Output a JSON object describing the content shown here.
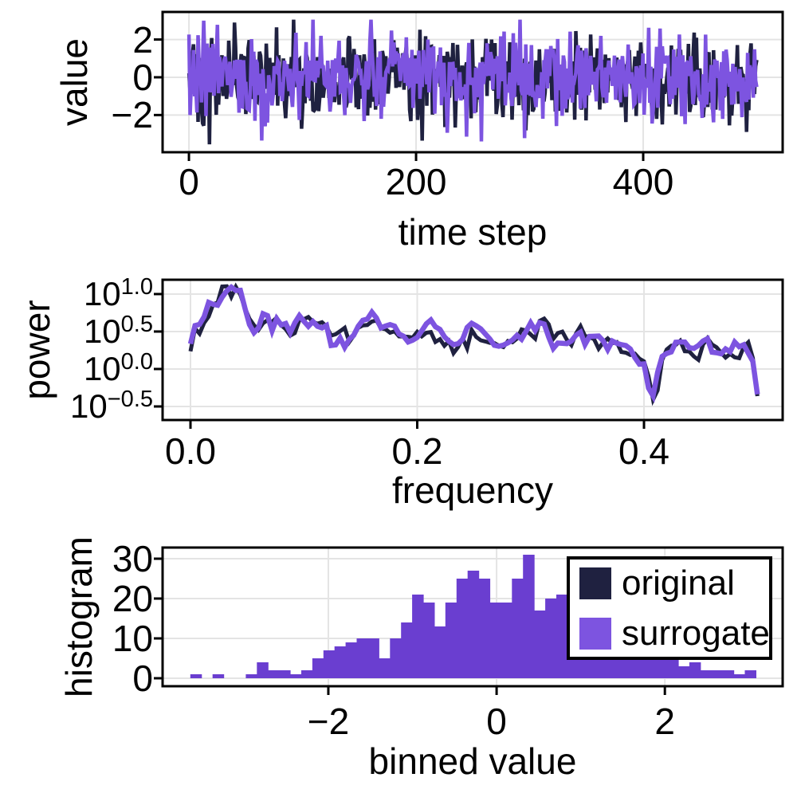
{
  "figure": {
    "background": "#ffffff",
    "text_color": "#000000",
    "grid_color": "#e4e4e4",
    "spine_color": "#000000"
  },
  "legend": {
    "entries": [
      {
        "label": "original",
        "color": "#1f2140"
      },
      {
        "label": "surrogate",
        "color": "#7d54e0"
      }
    ]
  },
  "chart_data": [
    {
      "type": "line",
      "id": "timeseries",
      "xlabel": "time step",
      "ylabel": "value",
      "xlim": [
        -23.2,
        522.8
      ],
      "ylim": [
        -3.97,
        3.46
      ],
      "xticks": {
        "values": [
          0,
          200,
          400
        ],
        "labels": [
          "0",
          "200",
          "400"
        ]
      },
      "yticks": {
        "values": [
          2,
          0,
          -2
        ],
        "labels": [
          "2",
          "0",
          "−2"
        ]
      },
      "x_range": [
        0,
        500
      ],
      "n_points": 500,
      "noise_std": 1.15,
      "series": [
        {
          "name": "original",
          "color": "#1f2140",
          "seed": 101,
          "linewidth": 4.5,
          "clip": [
            -3.55,
            3.05
          ],
          "spikes": [
            [
              18,
              -3.55
            ],
            [
              40,
              2.9
            ]
          ]
        },
        {
          "name": "surrogate",
          "color": "#7d54e0",
          "seed": 202,
          "linewidth": 4.5,
          "clip": [
            -3.4,
            3.05
          ],
          "spikes": [
            [
              13,
              3.0
            ],
            [
              64,
              -3.35
            ]
          ]
        }
      ]
    },
    {
      "type": "line",
      "id": "power-spectrum",
      "xlabel": "frequency",
      "ylabel": "power",
      "yscale": "log10",
      "xlim": [
        -0.0246,
        0.5223
      ],
      "ylim_log10": [
        -0.681,
        1.191
      ],
      "xticks": {
        "values": [
          0,
          0.2,
          0.4
        ],
        "labels": [
          "0.0",
          "0.2",
          "0.4"
        ]
      },
      "yticks": {
        "base": "10",
        "values": [
          1.0,
          0.5,
          0.0,
          -0.5
        ],
        "exponents": [
          "1.0",
          "0.5",
          "0.0",
          "−0.5"
        ]
      },
      "x_range": [
        0,
        0.5
      ],
      "n_points": 126,
      "noise_std_log10": 0.06,
      "trend_log10": [
        [
          0.0,
          0.25
        ],
        [
          0.004,
          0.6
        ],
        [
          0.008,
          0.62
        ],
        [
          0.012,
          0.72
        ],
        [
          0.016,
          0.95
        ],
        [
          0.022,
          1.0
        ],
        [
          0.03,
          1.03
        ],
        [
          0.038,
          1.0
        ],
        [
          0.044,
          0.98
        ],
        [
          0.05,
          0.72
        ],
        [
          0.056,
          0.6
        ],
        [
          0.064,
          0.63
        ],
        [
          0.072,
          0.55
        ],
        [
          0.08,
          0.6
        ],
        [
          0.088,
          0.42
        ],
        [
          0.096,
          0.56
        ],
        [
          0.104,
          0.68
        ],
        [
          0.112,
          0.65
        ],
        [
          0.12,
          0.52
        ],
        [
          0.128,
          0.45
        ],
        [
          0.136,
          0.52
        ],
        [
          0.144,
          0.5
        ],
        [
          0.152,
          0.6
        ],
        [
          0.16,
          0.68
        ],
        [
          0.168,
          0.6
        ],
        [
          0.176,
          0.58
        ],
        [
          0.184,
          0.5
        ],
        [
          0.192,
          0.48
        ],
        [
          0.2,
          0.5
        ],
        [
          0.208,
          0.6
        ],
        [
          0.216,
          0.5
        ],
        [
          0.224,
          0.45
        ],
        [
          0.232,
          0.35
        ],
        [
          0.24,
          0.45
        ],
        [
          0.248,
          0.55
        ],
        [
          0.256,
          0.48
        ],
        [
          0.264,
          0.4
        ],
        [
          0.272,
          0.34
        ],
        [
          0.28,
          0.4
        ],
        [
          0.288,
          0.45
        ],
        [
          0.296,
          0.52
        ],
        [
          0.304,
          0.55
        ],
        [
          0.312,
          0.58
        ],
        [
          0.32,
          0.42
        ],
        [
          0.328,
          0.38
        ],
        [
          0.336,
          0.42
        ],
        [
          0.344,
          0.48
        ],
        [
          0.352,
          0.42
        ],
        [
          0.36,
          0.38
        ],
        [
          0.368,
          0.4
        ],
        [
          0.376,
          0.35
        ],
        [
          0.384,
          0.3
        ],
        [
          0.392,
          0.25
        ],
        [
          0.4,
          0.05
        ],
        [
          0.408,
          -0.42
        ],
        [
          0.416,
          0.1
        ],
        [
          0.424,
          0.25
        ],
        [
          0.432,
          0.3
        ],
        [
          0.44,
          0.22
        ],
        [
          0.448,
          0.18
        ],
        [
          0.456,
          0.33
        ],
        [
          0.464,
          0.25
        ],
        [
          0.472,
          0.15
        ],
        [
          0.48,
          0.22
        ],
        [
          0.488,
          0.28
        ],
        [
          0.494,
          0.2
        ],
        [
          0.5,
          -0.38
        ]
      ],
      "series": [
        {
          "name": "original",
          "color": "#1f2140",
          "seed": 303,
          "linewidth": 5
        },
        {
          "name": "surrogate",
          "color": "#7d54e0",
          "seed": 404,
          "linewidth": 6.5
        }
      ]
    },
    {
      "type": "bar",
      "id": "histogram",
      "xlabel": "binned value",
      "ylabel": "histogram",
      "xlim": [
        -3.97,
        3.4
      ],
      "ylim": [
        -2,
        32.8
      ],
      "xticks": {
        "values": [
          -2,
          0,
          2
        ],
        "labels": [
          "−2",
          "0",
          "2"
        ]
      },
      "yticks": {
        "values": [
          0,
          10,
          20,
          30
        ],
        "labels": [
          "0",
          "10",
          "20",
          "30"
        ]
      },
      "bar_color": "#6a3ed0",
      "bin_start": -3.64,
      "bin_width": 0.1318,
      "counts": [
        1,
        0,
        1,
        0,
        0,
        1,
        4,
        2,
        2,
        1,
        2,
        5,
        7,
        8,
        9,
        10,
        10,
        5,
        10,
        14,
        21,
        19,
        13,
        19,
        25,
        27,
        25,
        19,
        19,
        25,
        31,
        17,
        20,
        21,
        18,
        15,
        13,
        12,
        10,
        9,
        8,
        7,
        6,
        5,
        3,
        4,
        2,
        2,
        2,
        1,
        2
      ]
    }
  ]
}
